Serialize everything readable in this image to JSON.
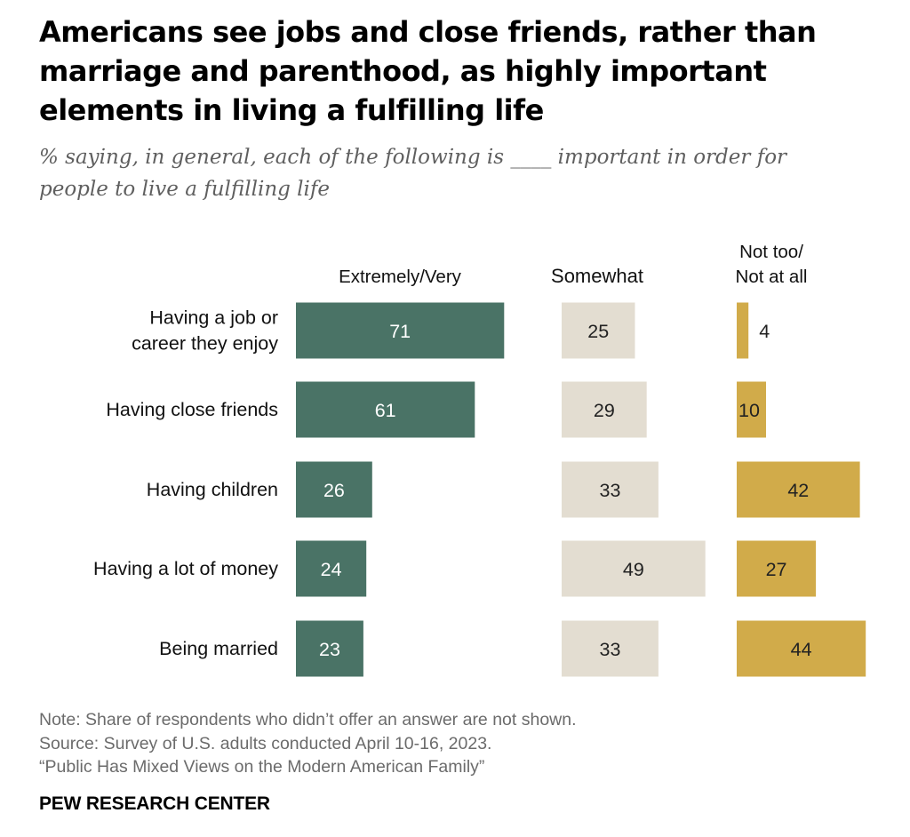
{
  "header": {
    "title": "Americans see jobs and close friends, rather than marriage and parenthood, as highly important elements in living a fulfilling life",
    "subtitle": "% saying, in general, each of the following is ____ important in order for people to live a fulfilling life"
  },
  "chart_data": {
    "type": "bar",
    "orientation": "horizontal",
    "title": "Americans see jobs and close friends, rather than marriage and parenthood, as highly important elements in living a fulfilling life",
    "categories": [
      [
        "Having a job or",
        "career they enjoy"
      ],
      [
        "Having close friends"
      ],
      [
        "Having children"
      ],
      [
        "Having a lot of money"
      ],
      [
        "Being married"
      ]
    ],
    "series": [
      {
        "name": "Extremely/Very",
        "label_lines": [
          "Extremely/Very"
        ],
        "color": "#4a7366",
        "label_color": "#ffffff",
        "values": [
          71,
          61,
          26,
          24,
          23
        ]
      },
      {
        "name": "Somewhat",
        "label_lines": [
          "Somewhat"
        ],
        "color": "#e3ddd1",
        "label_color": "#222222",
        "values": [
          25,
          29,
          33,
          49,
          33
        ]
      },
      {
        "name": "Not too/Not at all",
        "label_lines": [
          "Not too/",
          "Not at all"
        ],
        "color": "#d1ab4a",
        "label_color": "#222222",
        "values": [
          4,
          10,
          42,
          27,
          44
        ]
      }
    ],
    "xlabel": "",
    "ylabel": "",
    "xlim": [
      0,
      100
    ]
  },
  "footer": {
    "note": "Note: Share of respondents who didn’t offer an answer are not shown.",
    "source": "Source: Survey of U.S. adults conducted April 10-16, 2023.",
    "report": "“Public Has Mixed Views on the Modern American Family”",
    "brand": "PEW RESEARCH CENTER"
  }
}
